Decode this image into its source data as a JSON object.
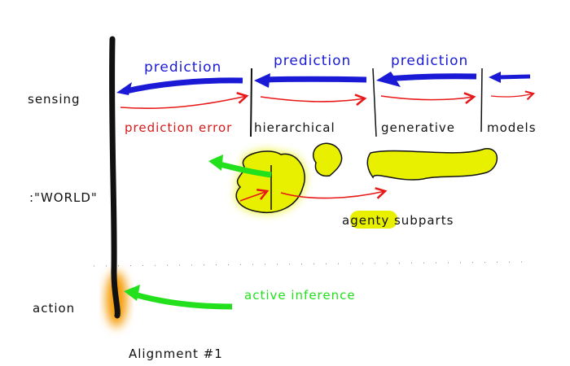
{
  "labels": {
    "sensing": "sensing",
    "world": ":\"WORLD\"",
    "action": "action",
    "prediction_1": "prediction",
    "prediction_2": "prediction",
    "prediction_3": "prediction",
    "prediction_error": "prediction error",
    "hierarchical": "hierarchical",
    "generative": "generative",
    "models": "models",
    "agenty_subparts": "agenty subparts",
    "active_inference": "active inference",
    "caption": "Alignment #1"
  },
  "colors": {
    "prediction": "#1a1ad6",
    "prediction_error": "#e81818",
    "active_inference": "#22e01c",
    "subpart_highlight": "#e8f000",
    "action_highlight": "#f59a00",
    "boundary": "#111111"
  }
}
